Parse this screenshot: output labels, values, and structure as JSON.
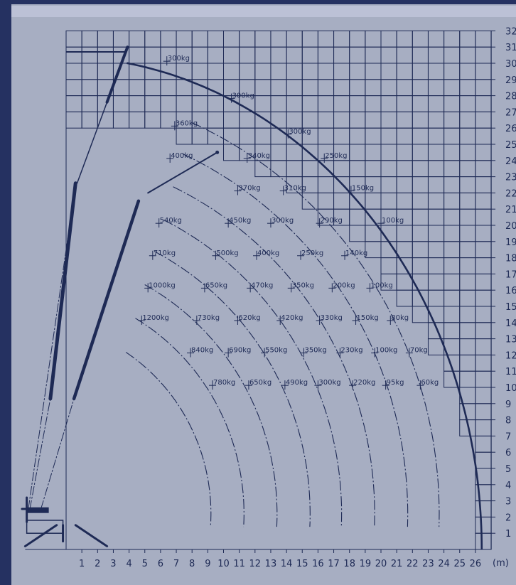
{
  "diagram": {
    "unit_label": "(m)",
    "x_axis": {
      "ticks": [
        1,
        2,
        3,
        4,
        5,
        6,
        7,
        8,
        9,
        10,
        11,
        12,
        13,
        14,
        15,
        16,
        17,
        18,
        19,
        20,
        21,
        22,
        23,
        24,
        25,
        26
      ]
    },
    "y_axis": {
      "ticks": [
        1,
        2,
        3,
        4,
        5,
        6,
        7,
        8,
        9,
        10,
        11,
        12,
        13,
        14,
        15,
        16,
        17,
        18,
        19,
        20,
        21,
        22,
        23,
        24,
        25,
        26,
        27,
        28,
        29,
        30,
        31,
        32
      ]
    },
    "envelope_radius_m": 27,
    "load_labels": [
      {
        "text": "300kg",
        "x": 6.4,
        "y": 30.3
      },
      {
        "text": "300kg",
        "x": 10.5,
        "y": 28.0
      },
      {
        "text": "300kg",
        "x": 14.1,
        "y": 25.8
      },
      {
        "text": "360kg",
        "x": 6.9,
        "y": 26.3
      },
      {
        "text": "400kg",
        "x": 6.6,
        "y": 24.3
      },
      {
        "text": "340kg",
        "x": 11.5,
        "y": 24.3
      },
      {
        "text": "250kg",
        "x": 16.4,
        "y": 24.3
      },
      {
        "text": "370kg",
        "x": 10.9,
        "y": 22.3
      },
      {
        "text": "310kg",
        "x": 13.8,
        "y": 22.3
      },
      {
        "text": "150kg",
        "x": 18.1,
        "y": 22.3
      },
      {
        "text": "540kg",
        "x": 5.9,
        "y": 20.3
      },
      {
        "text": "450kg",
        "x": 10.3,
        "y": 20.3
      },
      {
        "text": "300kg",
        "x": 13.0,
        "y": 20.3
      },
      {
        "text": "290kg",
        "x": 16.1,
        "y": 20.3
      },
      {
        "text": "100kg",
        "x": 20.0,
        "y": 20.3
      },
      {
        "text": "710kg",
        "x": 5.5,
        "y": 18.3
      },
      {
        "text": "500kg",
        "x": 9.5,
        "y": 18.3
      },
      {
        "text": "400kg",
        "x": 12.1,
        "y": 18.3
      },
      {
        "text": "250kg",
        "x": 14.9,
        "y": 18.3
      },
      {
        "text": "140kg",
        "x": 17.7,
        "y": 18.3
      },
      {
        "text": "1000kg",
        "x": 5.2,
        "y": 16.3
      },
      {
        "text": "650kg",
        "x": 8.8,
        "y": 16.3
      },
      {
        "text": "470kg",
        "x": 11.7,
        "y": 16.3
      },
      {
        "text": "350kg",
        "x": 14.3,
        "y": 16.3
      },
      {
        "text": "200kg",
        "x": 16.9,
        "y": 16.3
      },
      {
        "text": "100kg",
        "x": 19.3,
        "y": 16.3
      },
      {
        "text": "1200kg",
        "x": 4.8,
        "y": 14.3
      },
      {
        "text": "730kg",
        "x": 8.3,
        "y": 14.3
      },
      {
        "text": "620kg",
        "x": 10.9,
        "y": 14.3
      },
      {
        "text": "420kg",
        "x": 13.6,
        "y": 14.3
      },
      {
        "text": "330kg",
        "x": 16.1,
        "y": 14.3
      },
      {
        "text": "150kg",
        "x": 18.4,
        "y": 14.3
      },
      {
        "text": "80kg",
        "x": 20.6,
        "y": 14.3
      },
      {
        "text": "840kg",
        "x": 7.9,
        "y": 12.3
      },
      {
        "text": "690kg",
        "x": 10.3,
        "y": 12.3
      },
      {
        "text": "550kg",
        "x": 12.6,
        "y": 12.3
      },
      {
        "text": "350kg",
        "x": 15.1,
        "y": 12.3
      },
      {
        "text": "230kg",
        "x": 17.4,
        "y": 12.3
      },
      {
        "text": "100kg",
        "x": 19.6,
        "y": 12.3
      },
      {
        "text": "70kg",
        "x": 21.8,
        "y": 12.3
      },
      {
        "text": "780kg",
        "x": 9.3,
        "y": 10.3
      },
      {
        "text": "650kg",
        "x": 11.6,
        "y": 10.3
      },
      {
        "text": "490kg",
        "x": 13.9,
        "y": 10.3
      },
      {
        "text": "300kg",
        "x": 16.0,
        "y": 10.3
      },
      {
        "text": "220kg",
        "x": 18.2,
        "y": 10.3
      },
      {
        "text": "95kg",
        "x": 20.3,
        "y": 10.3
      },
      {
        "text": "60kg",
        "x": 22.5,
        "y": 10.3
      }
    ],
    "colors": {
      "frame": "#253161",
      "paper": "#a7aec2",
      "ink": "#1e2a55",
      "top_band": "#bcc1d6"
    }
  }
}
